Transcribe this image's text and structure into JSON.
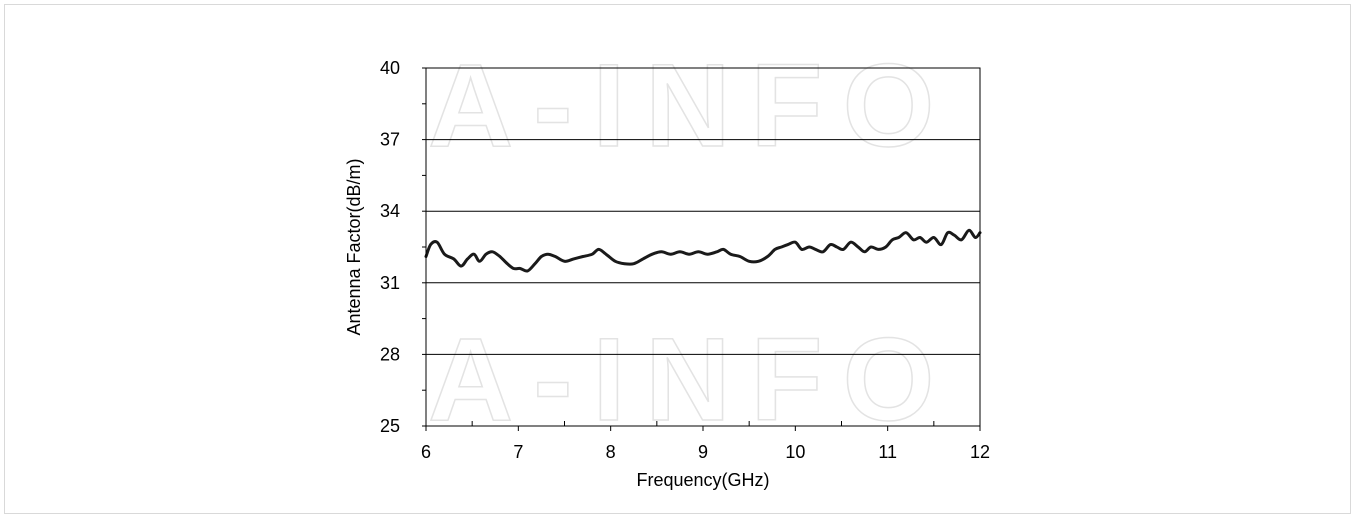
{
  "watermark": "A-INFO",
  "chart_data": {
    "type": "line",
    "title": "",
    "xlabel": "Frequency(GHz)",
    "ylabel": "Antenna Factor(dB/m)",
    "xlim": [
      6,
      12
    ],
    "ylim": [
      25,
      40
    ],
    "x_ticks": [
      "6",
      "7",
      "8",
      "9",
      "10",
      "11",
      "12"
    ],
    "y_ticks": [
      "25",
      "28",
      "31",
      "34",
      "37",
      "40"
    ],
    "grid": "horizontal",
    "legend": "none",
    "colors": {
      "line": "#1a1a1a",
      "grid": "#000000",
      "watermark": "#e3e3e3"
    },
    "series": [
      {
        "x": [
          6.0,
          6.05,
          6.12,
          6.2,
          6.3,
          6.38,
          6.45,
          6.52,
          6.58,
          6.65,
          6.72,
          6.8,
          6.88,
          6.95,
          7.02,
          7.1,
          7.18,
          7.25,
          7.32,
          7.4,
          7.5,
          7.6,
          7.7,
          7.8,
          7.87,
          7.95,
          8.05,
          8.15,
          8.25,
          8.35,
          8.45,
          8.55,
          8.65,
          8.75,
          8.85,
          8.95,
          9.05,
          9.15,
          9.22,
          9.3,
          9.4,
          9.5,
          9.6,
          9.7,
          9.78,
          9.85,
          9.92,
          10.0,
          10.07,
          10.15,
          10.22,
          10.3,
          10.38,
          10.45,
          10.52,
          10.6,
          10.68,
          10.75,
          10.82,
          10.9,
          10.98,
          11.05,
          11.12,
          11.2,
          11.28,
          11.35,
          11.42,
          11.5,
          11.58,
          11.65,
          11.72,
          11.8,
          11.88,
          11.95,
          12.0
        ],
        "y": [
          32.1,
          32.6,
          32.7,
          32.2,
          32.0,
          31.7,
          32.0,
          32.2,
          31.9,
          32.2,
          32.3,
          32.1,
          31.8,
          31.6,
          31.6,
          31.5,
          31.8,
          32.1,
          32.2,
          32.1,
          31.9,
          32.0,
          32.1,
          32.2,
          32.4,
          32.2,
          31.9,
          31.8,
          31.8,
          32.0,
          32.2,
          32.3,
          32.2,
          32.3,
          32.2,
          32.3,
          32.2,
          32.3,
          32.4,
          32.2,
          32.1,
          31.9,
          31.9,
          32.1,
          32.4,
          32.5,
          32.6,
          32.7,
          32.4,
          32.5,
          32.4,
          32.3,
          32.6,
          32.5,
          32.4,
          32.7,
          32.5,
          32.3,
          32.5,
          32.4,
          32.5,
          32.8,
          32.9,
          33.1,
          32.8,
          32.9,
          32.7,
          32.9,
          32.6,
          33.1,
          33.0,
          32.8,
          33.2,
          32.9,
          33.1
        ]
      }
    ]
  }
}
